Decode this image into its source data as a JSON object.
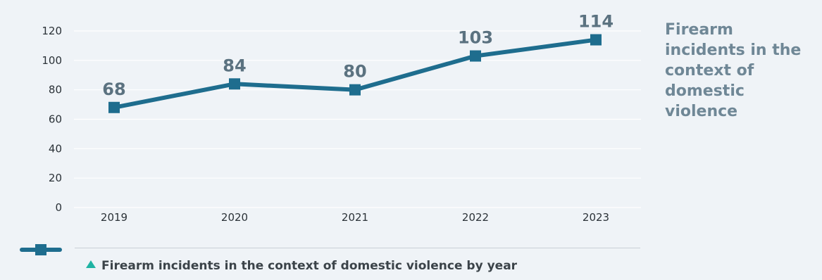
{
  "side_title": "Firearm incidents in the context of domestic violence",
  "legend": {
    "caption": "Firearm incidents in the context of domestic violence by year",
    "icon": "triangle-up-icon",
    "color": "#1fb3a3"
  },
  "colors": {
    "background": "#eff3f7",
    "series": "#1e6d8e",
    "data_label": "#5b7280",
    "side_title": "#6f8796"
  },
  "chart_data": {
    "type": "line",
    "title": "",
    "xlabel": "",
    "ylabel": "",
    "categories": [
      "2019",
      "2020",
      "2021",
      "2022",
      "2023"
    ],
    "series": [
      {
        "name": "Firearm incidents in the context of domestic violence by year",
        "values": [
          68,
          84,
          80,
          103,
          114
        ]
      }
    ],
    "yticks": [
      0,
      20,
      40,
      60,
      80,
      100,
      120
    ],
    "ylim": [
      0,
      120
    ],
    "grid": true,
    "data_labels": true,
    "legend_position": "bottom-left"
  }
}
